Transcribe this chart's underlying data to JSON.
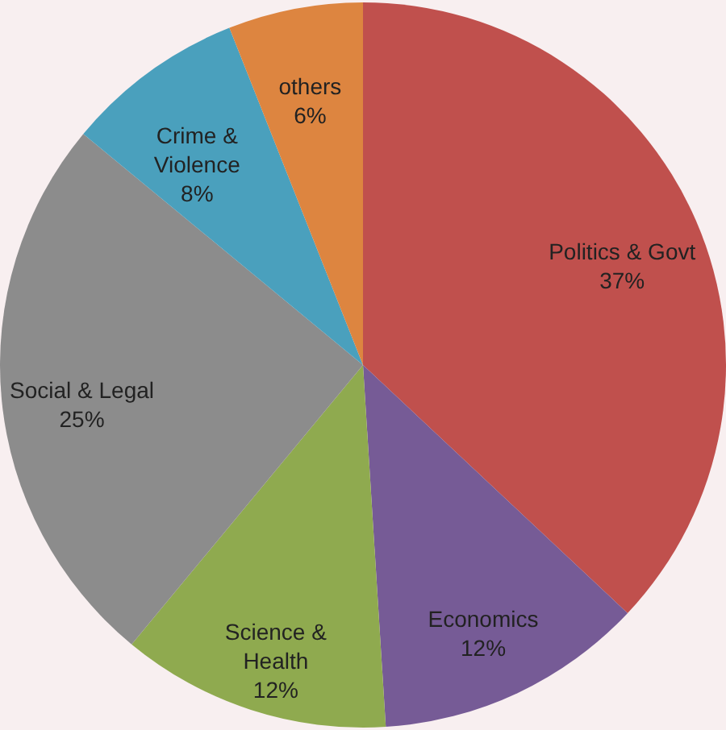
{
  "chart_data": {
    "type": "pie",
    "categories": [
      "Politics & Govt",
      "Economics",
      "Science & Health",
      "Social & Legal",
      "Crime & Violence",
      "others"
    ],
    "values": [
      37,
      12,
      12,
      25,
      8,
      6
    ],
    "colors": [
      "#c0504d",
      "#765b96",
      "#8faa4f",
      "#8c8c8c",
      "#4aa0bd",
      "#dd8540"
    ],
    "value_labels": [
      "37%",
      "12%",
      "12%",
      "25%",
      "8%",
      "6%"
    ],
    "legend": false
  }
}
